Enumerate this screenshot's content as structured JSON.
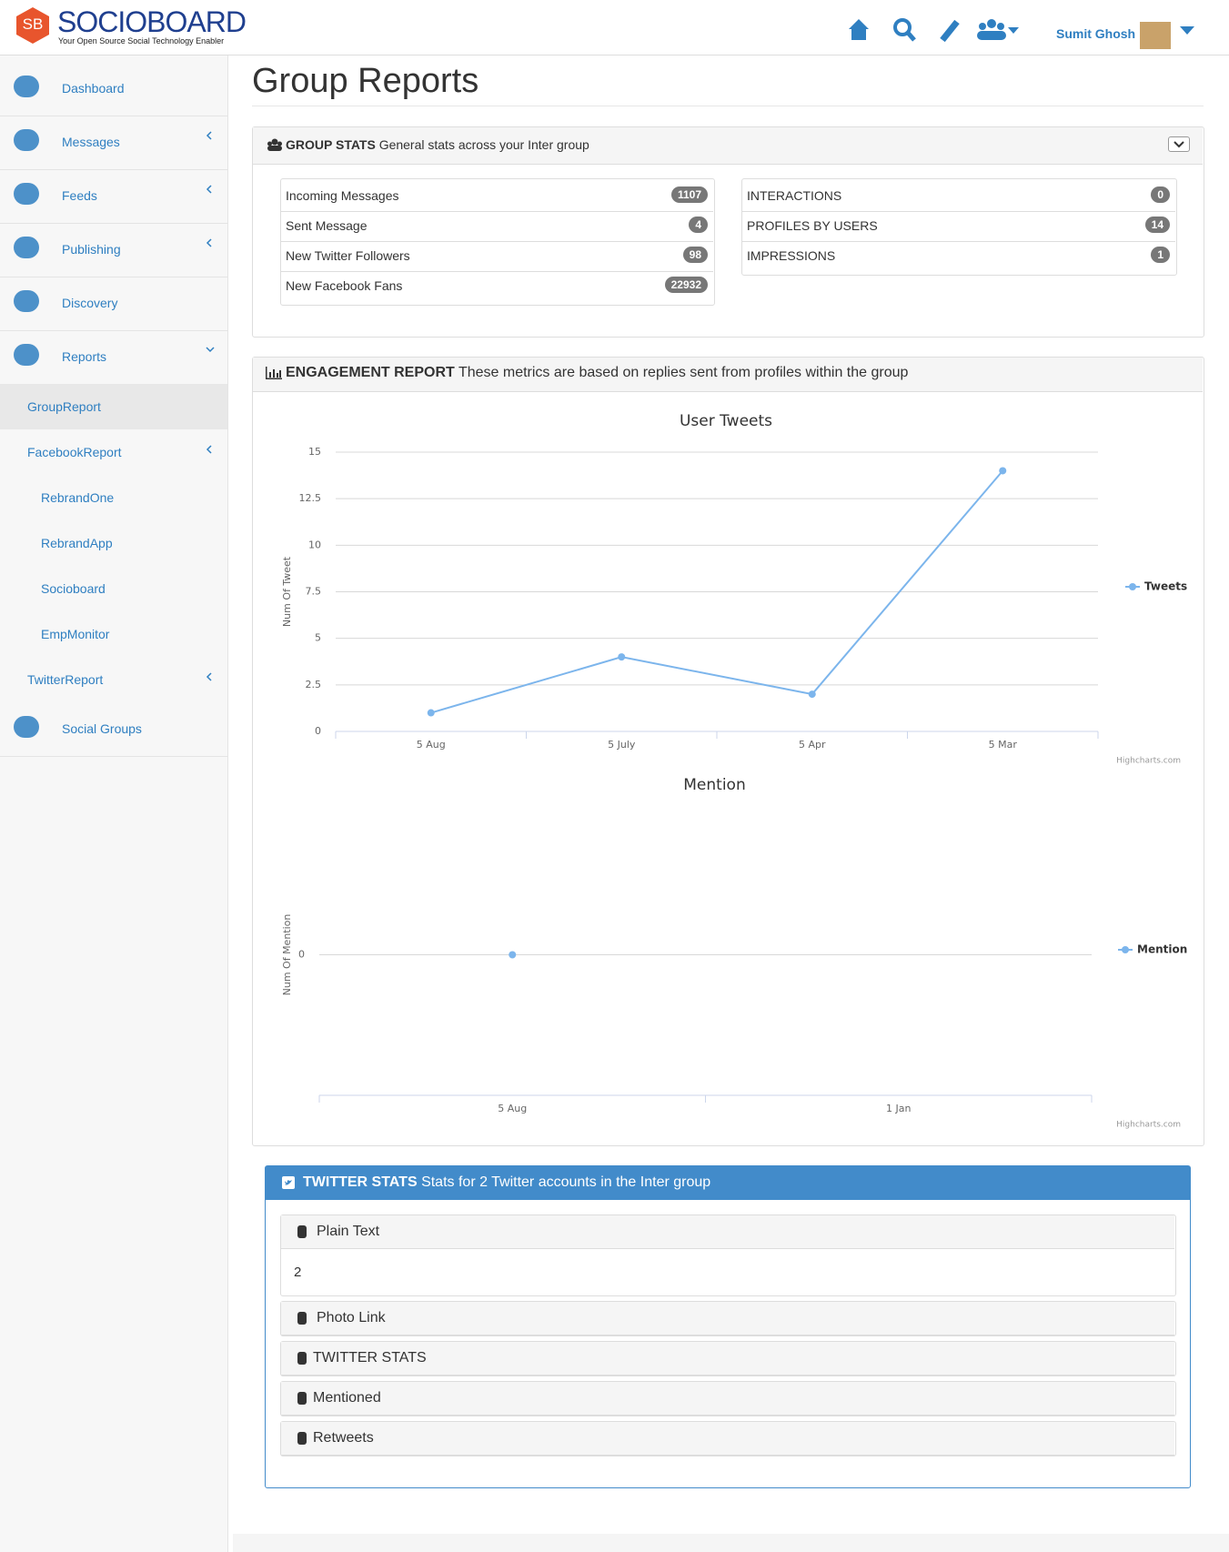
{
  "header": {
    "logo_mark": "SB",
    "logo_text": "SOCIOBOARD",
    "tagline": "Your Open Source Social Technology Enabler",
    "user_name": "Sumit Ghosh"
  },
  "sidebar": {
    "items": [
      {
        "label": "Dashboard"
      },
      {
        "label": "Messages"
      },
      {
        "label": "Feeds"
      },
      {
        "label": "Publishing"
      },
      {
        "label": "Discovery"
      },
      {
        "label": "Reports",
        "children": [
          {
            "label": "GroupReport"
          },
          {
            "label": "FacebookReport",
            "children": [
              {
                "label": "RebrandOne"
              },
              {
                "label": "RebrandApp"
              },
              {
                "label": "Socioboard"
              },
              {
                "label": "EmpMonitor"
              }
            ]
          },
          {
            "label": "TwitterReport"
          }
        ]
      },
      {
        "label": "Social Groups"
      }
    ]
  },
  "page": {
    "title": "Group Reports"
  },
  "group_stats": {
    "title": "GROUP STATS",
    "subtitle": "General stats across your Inter group",
    "left": [
      {
        "label": "Incoming Messages",
        "value": 1107
      },
      {
        "label": "Sent Message",
        "value": 4
      },
      {
        "label": "New Twitter Followers",
        "value": 98
      },
      {
        "label": "New Facebook Fans",
        "value": 22932
      }
    ],
    "right": [
      {
        "label": "INTERACTIONS",
        "value": 0
      },
      {
        "label": "PROFILES BY USERS",
        "value": 14
      },
      {
        "label": "IMPRESSIONS",
        "value": 1
      }
    ]
  },
  "engagement_report": {
    "title": "ENGAGEMENT REPORT",
    "subtitle": "These metrics are based on replies sent from profiles within the group"
  },
  "chart_data": [
    {
      "type": "line",
      "title": "User Tweets",
      "y_label": "Num Of Tweet",
      "categories": [
        "5 Aug",
        "5 July",
        "5 Apr",
        "5 Mar"
      ],
      "series": [
        {
          "name": "Tweets",
          "color": "#7cb5ec",
          "values": [
            1,
            4,
            2,
            14
          ]
        }
      ],
      "ylim": [
        0,
        15
      ],
      "yticks": [
        0,
        2.5,
        5,
        7.5,
        10,
        12.5,
        15
      ],
      "grid": true,
      "legend": "right",
      "credit": "Highcharts.com"
    },
    {
      "type": "line",
      "title": "Mention",
      "y_label": "Num Of Mention",
      "categories": [
        "5 Aug",
        "1 Jan"
      ],
      "series": [
        {
          "name": "Mention",
          "color": "#7cb5ec",
          "values": [
            0,
            null
          ]
        }
      ],
      "ylim": [
        -1,
        1
      ],
      "yticks": [
        0
      ],
      "grid": true,
      "legend": "right",
      "credit": "Highcharts.com"
    }
  ],
  "twitter_stats": {
    "title": "TWITTER STATS",
    "subtitle": "Stats for 2 Twitter accounts in the Inter group",
    "sections": [
      {
        "label": "Plain Text",
        "body": "2"
      },
      {
        "label": "Photo Link"
      },
      {
        "label": "TWITTER STATS"
      },
      {
        "label": "Mentioned"
      },
      {
        "label": "Retweets"
      }
    ]
  }
}
